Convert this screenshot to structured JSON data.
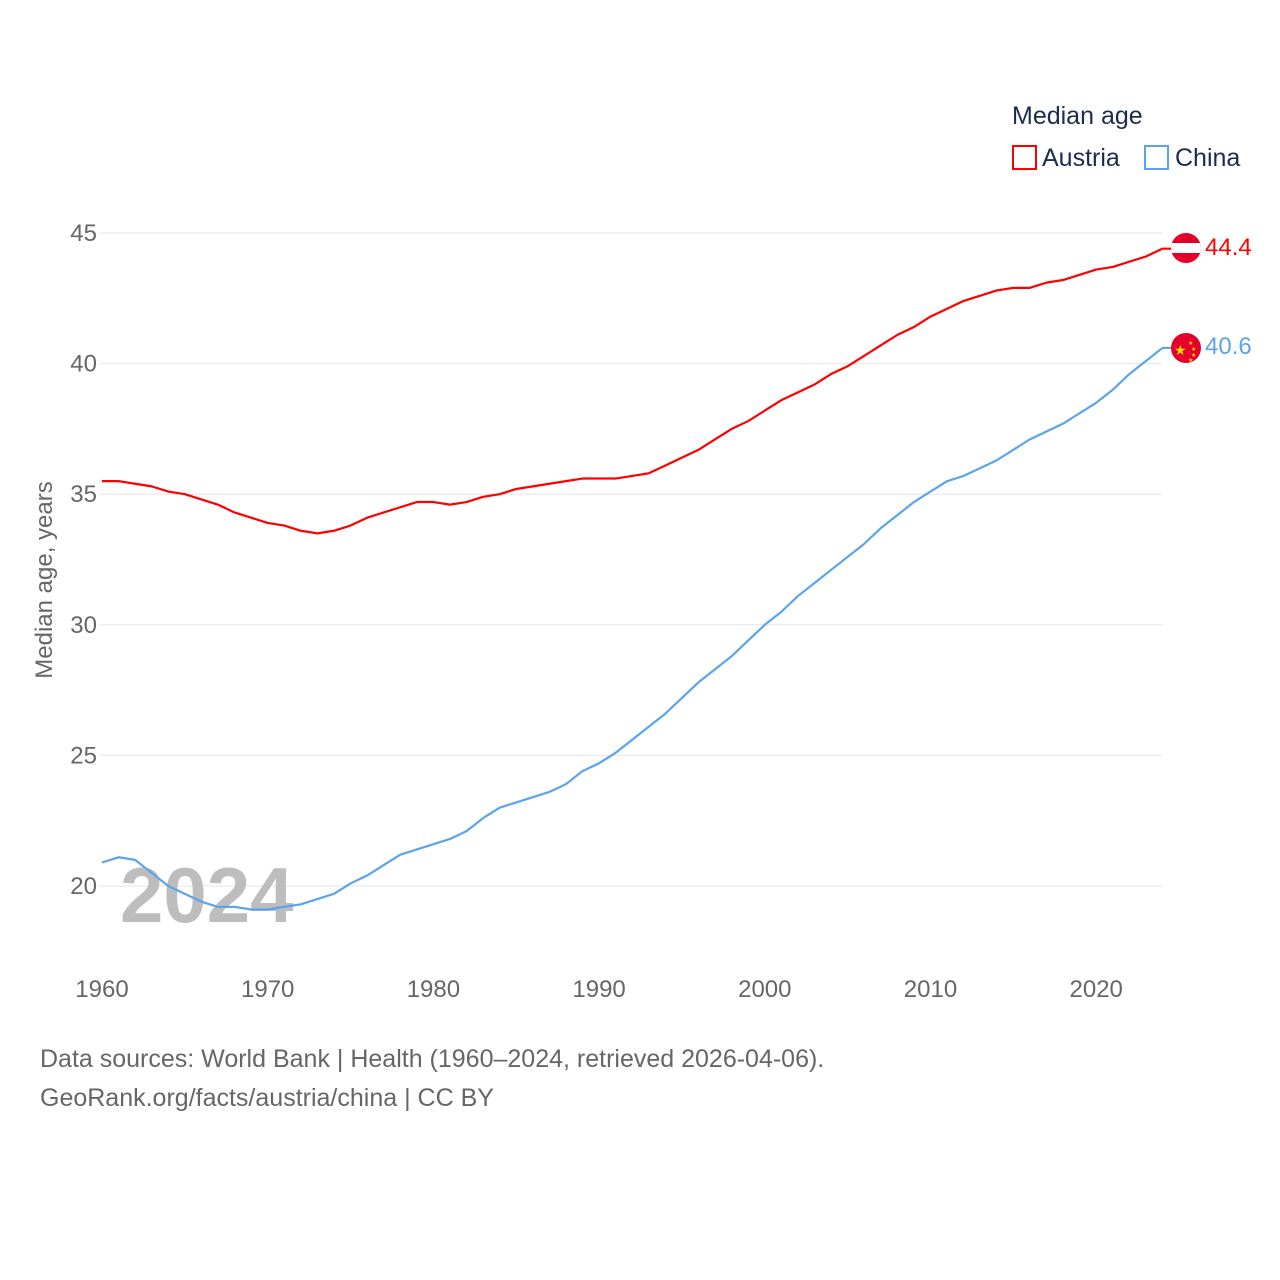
{
  "chart_data": {
    "type": "line",
    "title": "",
    "legend_title": "Median age",
    "legend_position": "top-right",
    "xlabel": "",
    "ylabel": "Median age, years",
    "xlim": [
      1960,
      2024
    ],
    "ylim": [
      17.5,
      47
    ],
    "y_ticks": [
      20,
      25,
      30,
      35,
      40,
      45
    ],
    "x_ticks": [
      1960,
      1970,
      1980,
      1990,
      2000,
      2010,
      2020
    ],
    "grid": true,
    "year_watermark": "2024",
    "x": [
      1960,
      1961,
      1962,
      1963,
      1964,
      1965,
      1966,
      1967,
      1968,
      1969,
      1970,
      1971,
      1972,
      1973,
      1974,
      1975,
      1976,
      1977,
      1978,
      1979,
      1980,
      1981,
      1982,
      1983,
      1984,
      1985,
      1986,
      1987,
      1988,
      1989,
      1990,
      1991,
      1992,
      1993,
      1994,
      1995,
      1996,
      1997,
      1998,
      1999,
      2000,
      2001,
      2002,
      2003,
      2004,
      2005,
      2006,
      2007,
      2008,
      2009,
      2010,
      2011,
      2012,
      2013,
      2014,
      2015,
      2016,
      2017,
      2018,
      2019,
      2020,
      2021,
      2022,
      2023,
      2024
    ],
    "series": [
      {
        "name": "Austria",
        "color": "#ff0000",
        "end_label": "44.4",
        "values": [
          35.5,
          35.5,
          35.4,
          35.3,
          35.1,
          35.0,
          34.8,
          34.6,
          34.3,
          34.1,
          33.9,
          33.8,
          33.6,
          33.5,
          33.6,
          33.8,
          34.1,
          34.3,
          34.5,
          34.7,
          34.7,
          34.6,
          34.7,
          34.9,
          35.0,
          35.2,
          35.3,
          35.4,
          35.5,
          35.6,
          35.6,
          35.6,
          35.7,
          35.8,
          36.1,
          36.4,
          36.7,
          37.1,
          37.5,
          37.8,
          38.2,
          38.6,
          38.9,
          39.2,
          39.6,
          39.9,
          40.3,
          40.7,
          41.1,
          41.4,
          41.8,
          42.1,
          42.4,
          42.6,
          42.8,
          42.9,
          42.9,
          43.1,
          43.2,
          43.4,
          43.6,
          43.7,
          43.9,
          44.1,
          44.4
        ]
      },
      {
        "name": "China",
        "color": "#5ba4ec",
        "end_label": "40.6",
        "values": [
          20.9,
          21.1,
          21.0,
          20.5,
          20.0,
          19.7,
          19.4,
          19.2,
          19.2,
          19.1,
          19.1,
          19.2,
          19.3,
          19.5,
          19.7,
          20.1,
          20.4,
          20.8,
          21.2,
          21.4,
          21.6,
          21.8,
          22.1,
          22.6,
          23.0,
          23.2,
          23.4,
          23.6,
          23.9,
          24.4,
          24.7,
          25.1,
          25.6,
          26.1,
          26.6,
          27.2,
          27.8,
          28.3,
          28.8,
          29.4,
          30.0,
          30.5,
          31.1,
          31.6,
          32.1,
          32.6,
          33.1,
          33.7,
          34.2,
          34.7,
          35.1,
          35.5,
          35.7,
          36.0,
          36.3,
          36.7,
          37.1,
          37.4,
          37.7,
          38.1,
          38.5,
          39.0,
          39.6,
          40.1,
          40.6
        ]
      }
    ]
  },
  "footer": {
    "line1": "Data sources: World Bank | Health (1960–2024, retrieved 2026-04-06).",
    "line2": "GeoRank.org/facts/austria/china | CC BY"
  }
}
